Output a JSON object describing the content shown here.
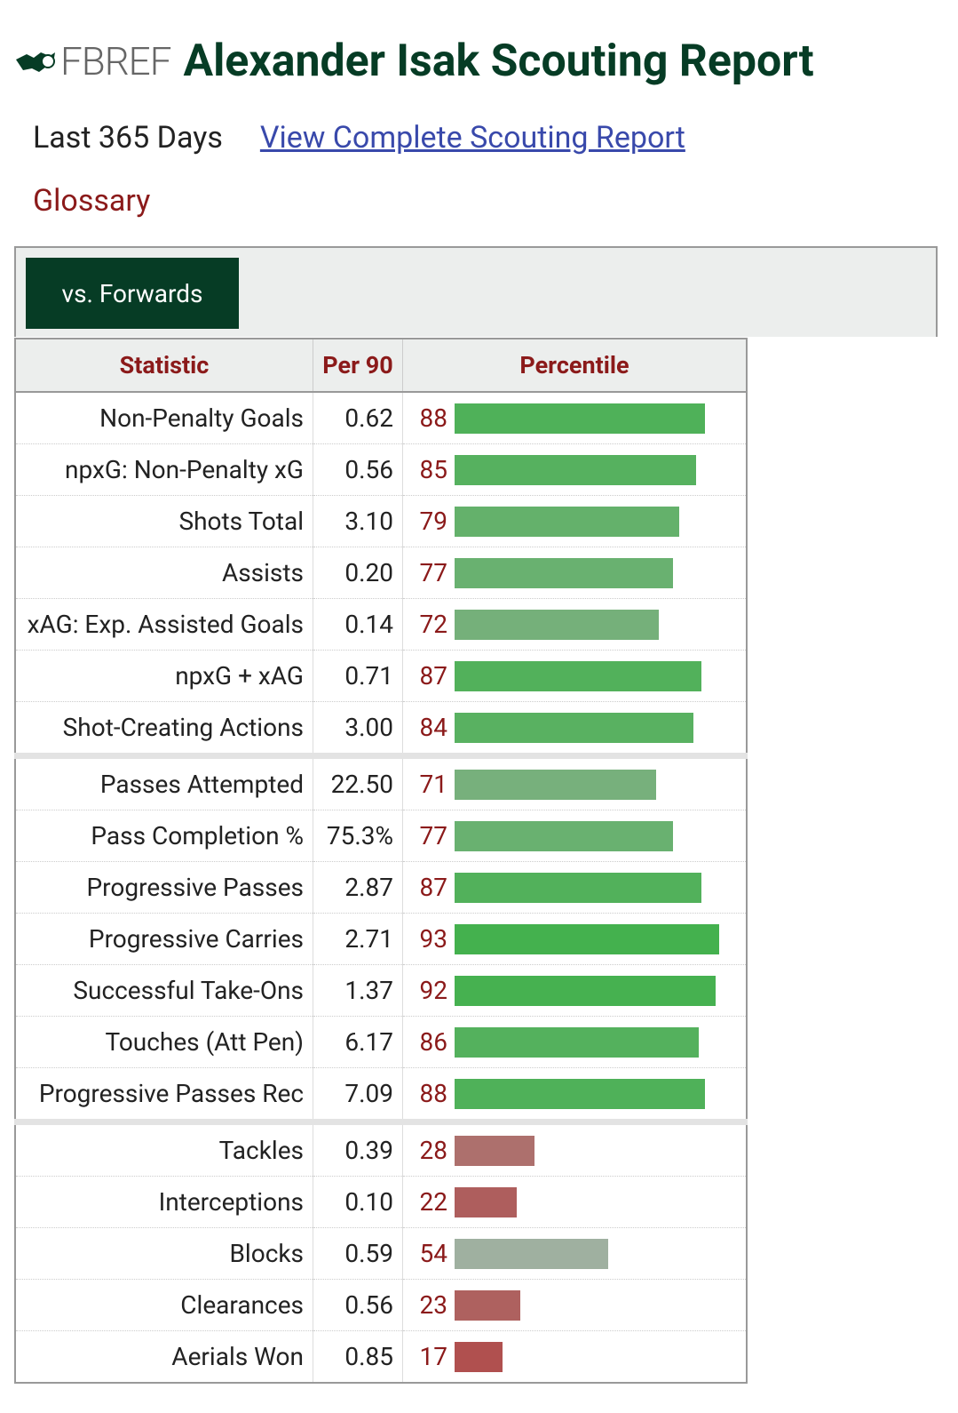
{
  "header": {
    "logo": "FBREF",
    "title": "Alexander Isak Scouting Report"
  },
  "subnav": {
    "period": "Last 365 Days",
    "link": "View Complete Scouting Report",
    "glossary": "Glossary"
  },
  "tab": "vs. Forwards",
  "table": {
    "columns": [
      "Statistic",
      "Per 90",
      "Percentile"
    ],
    "groups": [
      {
        "rows": [
          {
            "statistic": "Non-Penalty Goals",
            "per90": "0.62",
            "percentile": 88
          },
          {
            "statistic": "npxG: Non-Penalty xG",
            "per90": "0.56",
            "percentile": 85
          },
          {
            "statistic": "Shots Total",
            "per90": "3.10",
            "percentile": 79
          },
          {
            "statistic": "Assists",
            "per90": "0.20",
            "percentile": 77
          },
          {
            "statistic": "xAG: Exp. Assisted Goals",
            "per90": "0.14",
            "percentile": 72
          },
          {
            "statistic": "npxG + xAG",
            "per90": "0.71",
            "percentile": 87
          },
          {
            "statistic": "Shot-Creating Actions",
            "per90": "3.00",
            "percentile": 84
          }
        ]
      },
      {
        "rows": [
          {
            "statistic": "Passes Attempted",
            "per90": "22.50",
            "percentile": 71
          },
          {
            "statistic": "Pass Completion %",
            "per90": "75.3%",
            "percentile": 77
          },
          {
            "statistic": "Progressive Passes",
            "per90": "2.87",
            "percentile": 87
          },
          {
            "statistic": "Progressive Carries",
            "per90": "2.71",
            "percentile": 93
          },
          {
            "statistic": "Successful Take-Ons",
            "per90": "1.37",
            "percentile": 92
          },
          {
            "statistic": "Touches (Att Pen)",
            "per90": "6.17",
            "percentile": 86
          },
          {
            "statistic": "Progressive Passes Rec",
            "per90": "7.09",
            "percentile": 88
          }
        ]
      },
      {
        "rows": [
          {
            "statistic": "Tackles",
            "per90": "0.39",
            "percentile": 28
          },
          {
            "statistic": "Interceptions",
            "per90": "0.10",
            "percentile": 22
          },
          {
            "statistic": "Blocks",
            "per90": "0.59",
            "percentile": 54
          },
          {
            "statistic": "Clearances",
            "per90": "0.56",
            "percentile": 23
          },
          {
            "statistic": "Aerials Won",
            "per90": "0.85",
            "percentile": 17
          }
        ]
      }
    ]
  }
}
